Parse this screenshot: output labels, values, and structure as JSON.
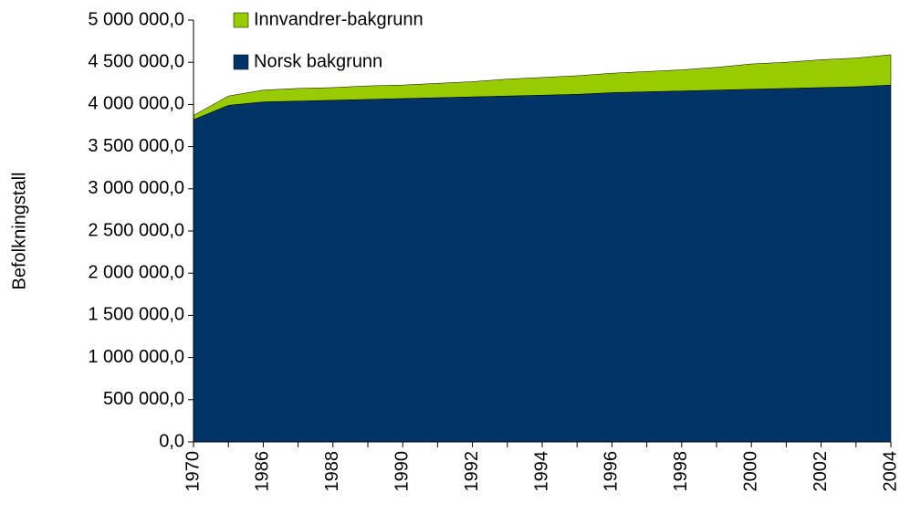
{
  "chart_data": {
    "type": "stacked_area",
    "y_label": "Befolkningstall",
    "categories": [
      "1970",
      null,
      "1986",
      null,
      "1988",
      null,
      "1990",
      null,
      "1992",
      null,
      "1994",
      null,
      "1996",
      null,
      "1998",
      null,
      "2000",
      null,
      "2002",
      null,
      "2004"
    ],
    "series": [
      {
        "name": "Norsk bakgrunn",
        "color": "#003366",
        "values": [
          3820000,
          3990000,
          4030000,
          4040000,
          4050000,
          4060000,
          4070000,
          4080000,
          4090000,
          4100000,
          4110000,
          4120000,
          4140000,
          4150000,
          4160000,
          4170000,
          4180000,
          4190000,
          4200000,
          4210000,
          4230000
        ]
      },
      {
        "name": "Innvandrer-bakgrunn",
        "color": "#99cc00",
        "values": [
          50000,
          110000,
          140000,
          150000,
          150000,
          160000,
          160000,
          170000,
          180000,
          200000,
          210000,
          220000,
          230000,
          240000,
          250000,
          270000,
          300000,
          310000,
          330000,
          340000,
          360000
        ]
      }
    ],
    "ylim": [
      0,
      5000000
    ],
    "yticks": [
      {
        "value": 0,
        "label": "0,0"
      },
      {
        "value": 500000,
        "label": "500 000,0"
      },
      {
        "value": 1000000,
        "label": "1 000 000,0"
      },
      {
        "value": 1500000,
        "label": "1 500 000,0"
      },
      {
        "value": 2000000,
        "label": "2 000 000,0"
      },
      {
        "value": 2500000,
        "label": "2 500 000,0"
      },
      {
        "value": 3000000,
        "label": "3 000 000,0"
      },
      {
        "value": 3500000,
        "label": "3 500 000,0"
      },
      {
        "value": 4000000,
        "label": "4 000 000,0"
      },
      {
        "value": 4500000,
        "label": "4 500 000,0"
      },
      {
        "value": 5000000,
        "label": "5 000 000,0"
      }
    ],
    "legend": "upper left"
  }
}
